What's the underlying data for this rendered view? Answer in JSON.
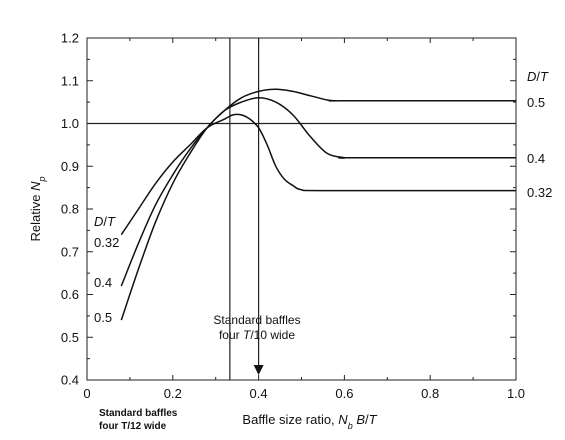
{
  "chart_data": {
    "type": "line",
    "xlabel": "Baffle size ratio, N_b B/T",
    "ylabel": "Relative N_p",
    "xlim": [
      0,
      1.0
    ],
    "ylim": [
      0.4,
      1.2
    ],
    "x_ticks": [
      "0",
      "0.2",
      "0.4",
      "0.6",
      "0.8",
      "1.0"
    ],
    "y_ticks": [
      "0.4",
      "0.5",
      "0.6",
      "0.7",
      "0.8",
      "0.9",
      "1.0",
      "1.1",
      "1.2"
    ],
    "grid": false,
    "reference_line_y": 1.0,
    "series": [
      {
        "name": "0.5",
        "x": [
          0.08,
          0.12,
          0.16,
          0.2,
          0.24,
          0.28,
          0.32,
          0.36,
          0.4,
          0.44,
          0.48,
          0.52,
          0.56,
          0.58,
          0.6,
          1.0
        ],
        "y": [
          0.54,
          0.66,
          0.77,
          0.86,
          0.93,
          0.99,
          1.03,
          1.06,
          1.075,
          1.08,
          1.075,
          1.065,
          1.055,
          1.053,
          1.053,
          1.053
        ]
      },
      {
        "name": "0.4",
        "x": [
          0.08,
          0.12,
          0.16,
          0.2,
          0.24,
          0.28,
          0.32,
          0.36,
          0.4,
          0.44,
          0.48,
          0.52,
          0.56,
          0.6,
          0.62,
          1.0
        ],
        "y": [
          0.62,
          0.72,
          0.81,
          0.88,
          0.94,
          0.99,
          1.03,
          1.05,
          1.06,
          1.05,
          1.02,
          0.97,
          0.93,
          0.92,
          0.92,
          0.92
        ]
      },
      {
        "name": "0.32",
        "x": [
          0.08,
          0.12,
          0.16,
          0.2,
          0.24,
          0.28,
          0.32,
          0.34,
          0.36,
          0.38,
          0.4,
          0.42,
          0.44,
          0.46,
          0.48,
          0.5,
          0.56,
          1.0
        ],
        "y": [
          0.74,
          0.8,
          0.86,
          0.91,
          0.95,
          0.99,
          1.01,
          1.02,
          1.02,
          1.01,
          0.99,
          0.95,
          0.9,
          0.87,
          0.855,
          0.845,
          0.843,
          0.843
        ]
      }
    ],
    "left_labels": {
      "header": "D/T",
      "items": [
        "0.32",
        "0.4",
        "0.5"
      ]
    },
    "right_labels": {
      "header": "D/T",
      "items": [
        "0.5",
        "0.4",
        "0.32"
      ]
    },
    "vertical_markers": [
      {
        "x": 0.333,
        "label_lines": [
          "Standard baffles",
          "four T/12 wide"
        ]
      },
      {
        "x": 0.4,
        "label_lines": [
          "Standard baffles",
          "four T/10 wide"
        ]
      }
    ]
  }
}
